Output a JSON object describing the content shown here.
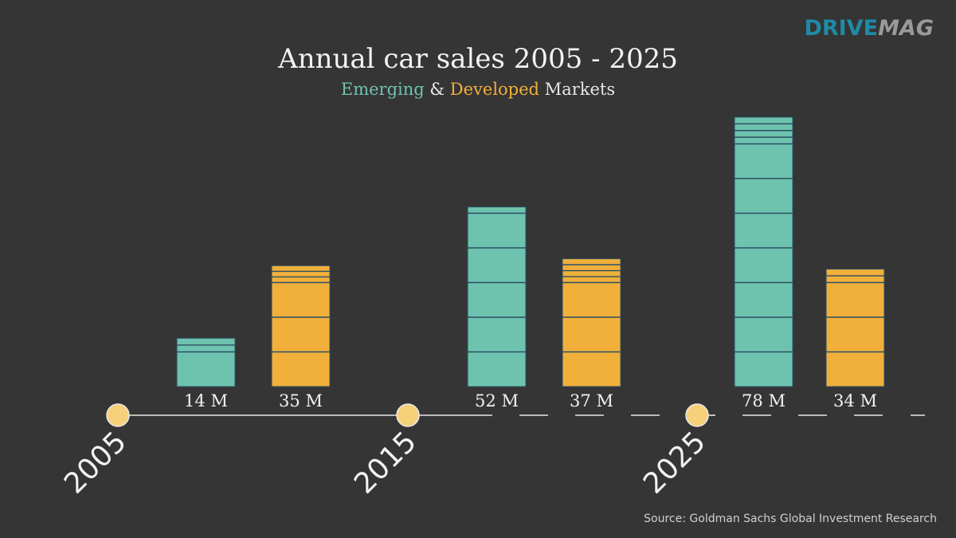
{
  "brand": {
    "logo_part1": "DRIVE",
    "logo_part2": "MAG"
  },
  "colors": {
    "background": "#353535",
    "emerging": "#6ec3ae",
    "developed": "#f1b03a",
    "stripe": "#2b4f66",
    "milestone": "#f6d17a",
    "timeline": "#e6e6e6",
    "text": "#f2f2f2"
  },
  "chart_data": {
    "type": "bar",
    "title": "Annual car sales 2005 - 2025",
    "subtitle": {
      "part1": "Emerging",
      "part2": " & ",
      "part3": "Developed",
      "part4": " Markets"
    },
    "categories": [
      "2005",
      "2015",
      "2025"
    ],
    "unit": "M",
    "series": [
      {
        "name": "Emerging",
        "values": [
          14,
          52,
          78
        ]
      },
      {
        "name": "Developed",
        "values": [
          35,
          37,
          34
        ]
      }
    ],
    "value_labels": [
      [
        "14 M",
        "52 M",
        "78 M"
      ],
      [
        "35 M",
        "37 M",
        "34 M"
      ]
    ],
    "ylim": [
      0,
      80
    ]
  },
  "source": "Source: Goldman Sachs Global Investment Research"
}
